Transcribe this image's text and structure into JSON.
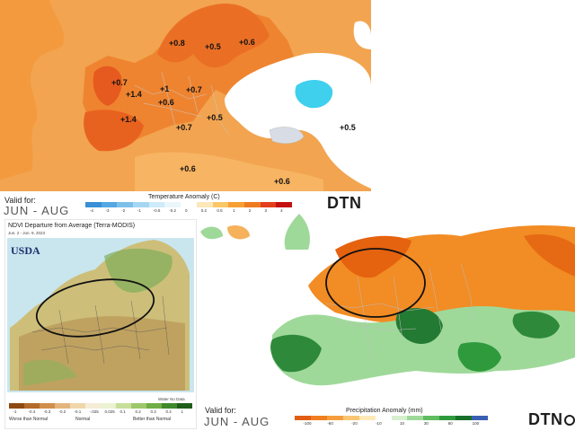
{
  "temperature_map": {
    "valid_for_label": "Valid for:",
    "valid_period": "JUN - AUG",
    "legend_title": "Temperature Anomaly (C)",
    "legend_ticks": [
      "-4",
      "-3",
      "-2",
      "-1",
      "-0.5",
      "-0.2",
      "0",
      "0.2",
      "0.5",
      "1",
      "2",
      "3",
      "4"
    ],
    "legend_colors": [
      "#3a8fd6",
      "#55a8e2",
      "#7cc0ea",
      "#a6d7f2",
      "#cdebf8",
      "#e9f6fc",
      "#ffffff",
      "#fde7b8",
      "#fbc766",
      "#f6a034",
      "#ef7a20",
      "#e2401c",
      "#c41010"
    ],
    "anomalies": [
      "+0.8",
      "+0.5",
      "+0.6",
      "+0.7",
      "+1.4",
      "+1",
      "+0.7",
      "+0.6",
      "+1.4",
      "+0.5",
      "+0.7",
      "+0.5",
      "+0.6",
      "+0.6"
    ],
    "brand": "DTN"
  },
  "ndvi_map": {
    "title": "NDVI Departure from Average (Terra-MODIS)",
    "date_range": "Jun. 2 - Jun. 9, 2023",
    "logo_text": "USDA",
    "water_label": "Water No Data",
    "legend_ticks": [
      "-1",
      "-0.4",
      "-0.3",
      "-0.2",
      "-0.1",
      "-.025",
      "0.025",
      "0.1",
      "0.2",
      "0.3",
      "0.4",
      "1"
    ],
    "legend_colors": [
      "#8c4a12",
      "#b36a2a",
      "#d18f4b",
      "#e3b57d",
      "#f0d7aa",
      "#f5edd6",
      "#eaf2d2",
      "#c8df9a",
      "#9cc86a",
      "#6fae45",
      "#3f8a2b",
      "#1e5e1a"
    ],
    "categories": [
      "Worse than Normal",
      "Normal",
      "Better than Normal"
    ]
  },
  "precip_map": {
    "valid_for_label": "Valid for:",
    "valid_period": "JUN - AUG",
    "legend_title": "Precipitation Anomaly",
    "legend_unit": "(mm)",
    "legend_ticks": [
      "-100",
      "-60",
      "-20",
      "-10",
      "10",
      "30",
      "60",
      "100"
    ],
    "legend_colors": [
      "#e25d12",
      "#f07e1f",
      "#f59f3c",
      "#f9c572",
      "#fde9b8",
      "#ffffff",
      "#d6efcf",
      "#9fd99a",
      "#5fbd5f",
      "#2e9a3c",
      "#17702a",
      "#3b5fb3"
    ],
    "brand": "DTN"
  }
}
